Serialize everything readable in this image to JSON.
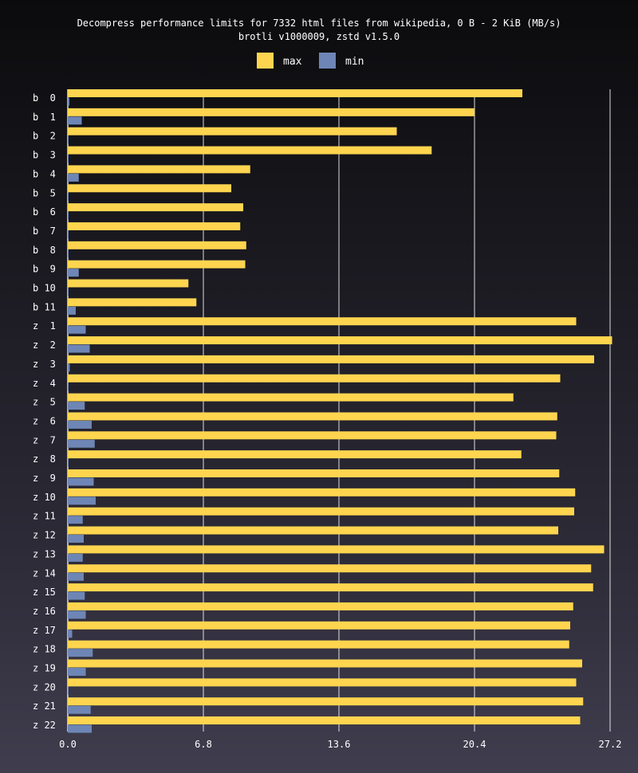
{
  "chart_data": {
    "type": "bar",
    "orientation": "horizontal",
    "title": "Decompress performance limits for 7332 html files from wikipedia, 0 B - 2 KiB (MB/s)",
    "subtitle": "brotli v1000009, zstd v1.5.0",
    "categories": [
      "b  0",
      "b  1",
      "b  2",
      "b  3",
      "b  4",
      "b  5",
      "b  6",
      "b  7",
      "b  8",
      "b  9",
      "b 10",
      "b 11",
      "z  1",
      "z  2",
      "z  3",
      "z  4",
      "z  5",
      "z  6",
      "z  7",
      "z  8",
      "z  9",
      "z 10",
      "z 11",
      "z 12",
      "z 13",
      "z 14",
      "z 15",
      "z 16",
      "z 17",
      "z 18",
      "z 19",
      "z 20",
      "z 21",
      "z 22"
    ],
    "series": [
      {
        "name": "max",
        "color": "#ffd54f",
        "values": [
          22.8,
          20.4,
          16.5,
          18.25,
          9.15,
          8.2,
          8.8,
          8.65,
          8.95,
          8.9,
          6.05,
          6.45,
          25.5,
          27.3,
          26.4,
          24.7,
          22.35,
          24.55,
          24.5,
          22.75,
          24.65,
          25.45,
          25.4,
          24.6,
          26.9,
          26.25,
          26.35,
          25.35,
          25.2,
          25.15,
          25.8,
          25.5,
          25.85,
          25.7
        ]
      },
      {
        "name": "min",
        "color": "#6e86b5",
        "values": [
          0.08,
          0.7,
          0.04,
          0.04,
          0.55,
          0.04,
          0.04,
          0.04,
          0.04,
          0.55,
          0.04,
          0.4,
          0.9,
          1.1,
          0.1,
          0.04,
          0.85,
          1.2,
          1.35,
          0.04,
          1.3,
          1.4,
          0.75,
          0.8,
          0.75,
          0.8,
          0.85,
          0.9,
          0.22,
          1.25,
          0.9,
          0.04,
          1.15,
          1.2
        ]
      }
    ],
    "xlim": [
      0,
      27.2
    ],
    "xticks": [
      "0.0",
      "6.8",
      "13.6",
      "20.4",
      "27.2"
    ],
    "grid": true,
    "legend_position": "top-center"
  }
}
